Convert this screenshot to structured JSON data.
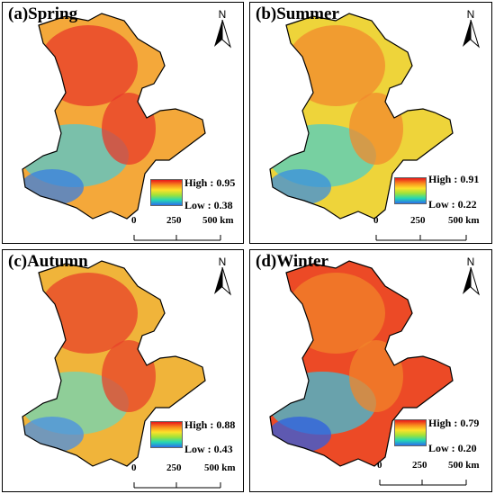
{
  "panels": [
    {
      "title": "(a)Spring",
      "legend": {
        "high": "High : 0.95",
        "low": "Low : 0.38",
        "colors": [
          "#e8171a",
          "#f98b1d",
          "#fde12a",
          "#9fe23a",
          "#25d7b4",
          "#2b6fea"
        ]
      },
      "north": {
        "letter": "N",
        "icon": "north-arrow-icon"
      },
      "scalebar": {
        "ticks": [
          "0",
          "250",
          "500 km"
        ]
      },
      "colors": {
        "base": "#f4a83a",
        "zone_a": "#e83a2a",
        "zone_b": "#52c8d0",
        "zone_c": "#3a7fe0"
      }
    },
    {
      "title": "(b)Summer",
      "legend": {
        "high": "High : 0.91",
        "low": "Low : 0.22",
        "colors": [
          "#e8171a",
          "#f98b1d",
          "#fde12a",
          "#9fe23a",
          "#25d7b4",
          "#2b6fea"
        ]
      },
      "north": {
        "letter": "N",
        "icon": "north-arrow-icon"
      },
      "scalebar": {
        "ticks": [
          "0",
          "250",
          "500 km"
        ]
      },
      "colors": {
        "base": "#eed43a",
        "zone_a": "#f28a2d",
        "zone_b": "#4fcfc4",
        "zone_c": "#3a8fe0"
      }
    },
    {
      "title": "(c)Autumn",
      "legend": {
        "high": "High : 0.88",
        "low": "Low : 0.43",
        "colors": [
          "#e8171a",
          "#f98b1d",
          "#fde12a",
          "#9fe23a",
          "#25d7b4",
          "#2b6fea"
        ]
      },
      "north": {
        "letter": "N",
        "icon": "north-arrow-icon"
      },
      "scalebar": {
        "ticks": [
          "0",
          "250",
          "500 km"
        ]
      },
      "colors": {
        "base": "#f0b43a",
        "zone_a": "#e8422a",
        "zone_b": "#6fd7b8",
        "zone_c": "#4a8fe4"
      }
    },
    {
      "title": "(d)Winter",
      "legend": {
        "high": "High : 0.79",
        "low": "Low : 0.20",
        "colors": [
          "#e8171a",
          "#f98b1d",
          "#fde12a",
          "#9fe23a",
          "#25d7b4",
          "#2b6fea"
        ]
      },
      "north": {
        "letter": "N",
        "icon": "north-arrow-icon"
      },
      "scalebar": {
        "ticks": [
          "0",
          "250",
          "500 km"
        ]
      },
      "colors": {
        "base": "#ec4a26",
        "zone_a": "#f2842a",
        "zone_b": "#3ec0da",
        "zone_c": "#2f5fe0"
      }
    }
  ]
}
